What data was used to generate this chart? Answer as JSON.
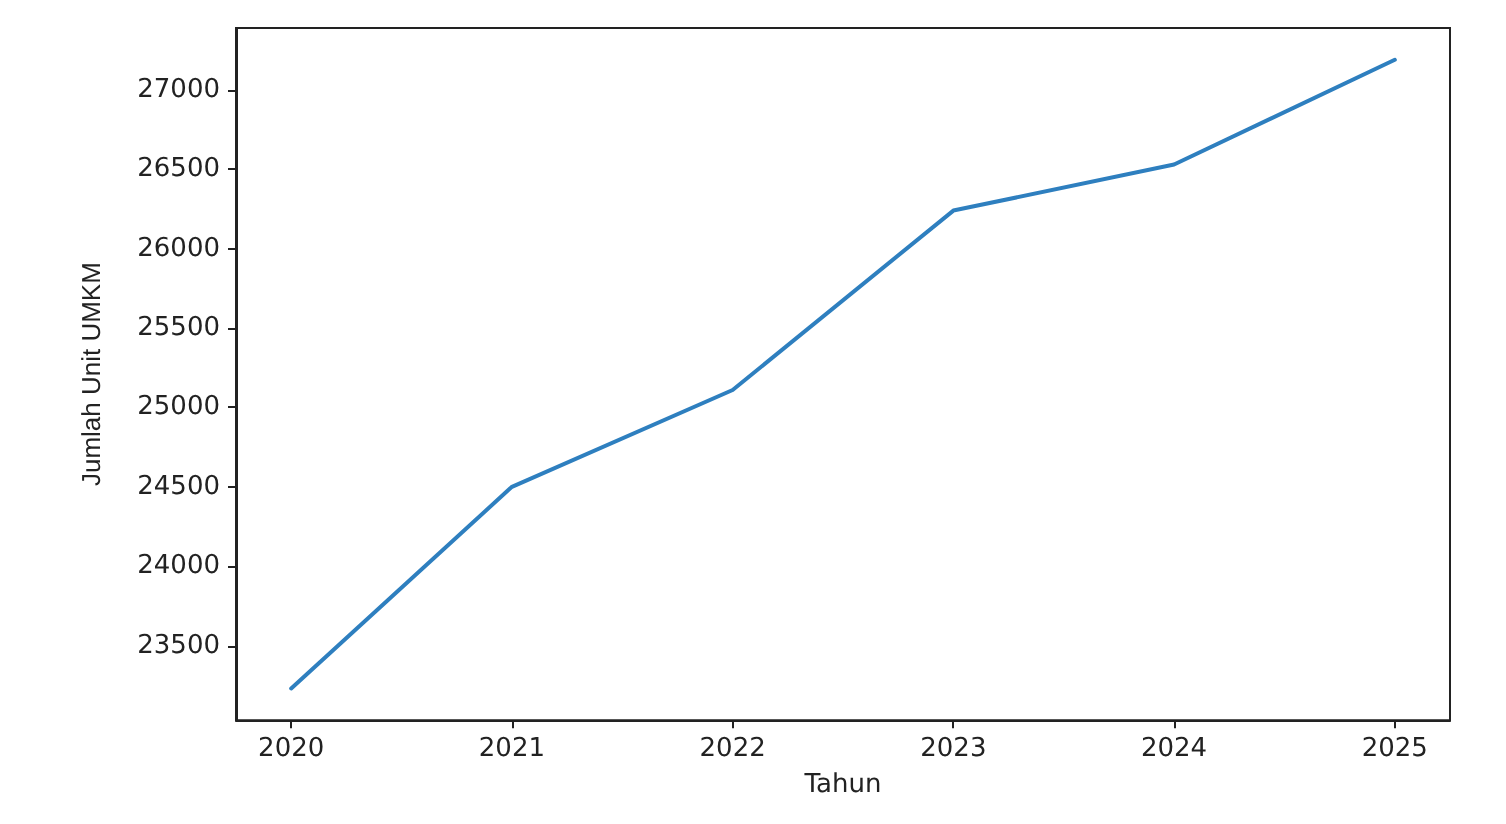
{
  "chart_data": {
    "type": "line",
    "xlabel": "Tahun",
    "ylabel": "Jumlah Unit UMKM",
    "x": [
      2020,
      2021,
      2022,
      2023,
      2024,
      2025
    ],
    "series": [
      {
        "color": "#2e7fbf",
        "values": [
          23230,
          24500,
          25110,
          26240,
          26530,
          27190
        ]
      }
    ],
    "xlim": [
      2019.75,
      2025.25
    ],
    "xticks": [
      2020,
      2021,
      2022,
      2023,
      2024,
      2025
    ],
    "ylim": [
      23030,
      27390
    ],
    "yticks": [
      23500,
      24000,
      24500,
      25000,
      25500,
      26000,
      26500,
      27000
    ],
    "grid": false
  }
}
